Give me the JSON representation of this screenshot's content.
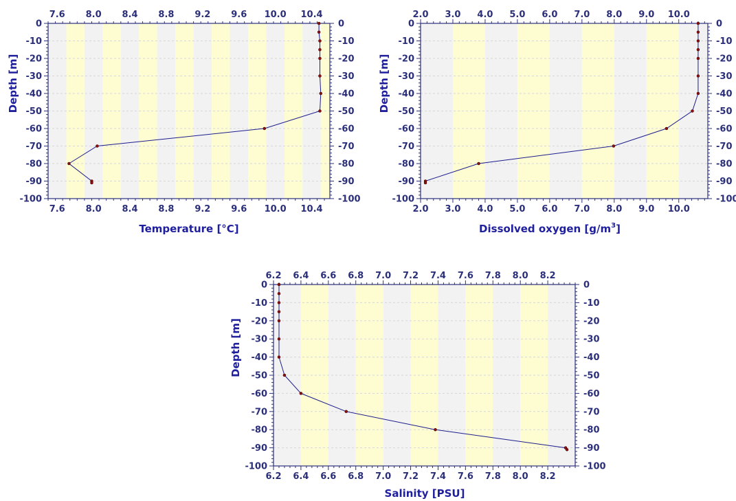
{
  "colors": {
    "band_gray": "#f2f2f2",
    "band_yellow": "#fefdd2",
    "axis": "#2b2f7a",
    "tick_text": "#2b2f7a",
    "title_text": "#1f1f9e",
    "line": "#1c1c8c",
    "marker": "#8b1010"
  },
  "chart_data": [
    {
      "type": "line",
      "xlabel": "Temperature [°C]",
      "ylabel": "Depth [m]",
      "xlim": [
        7.5,
        10.6
      ],
      "ylim": [
        -100,
        0
      ],
      "x_ticks": [
        "7.6",
        "8.0",
        "8.4",
        "8.8",
        "9.2",
        "9.6",
        "10.0",
        "10.4"
      ],
      "x_tick_values": [
        7.6,
        8.0,
        8.4,
        8.8,
        9.2,
        9.6,
        10.0,
        10.4
      ],
      "y_ticks_left": [
        "0",
        "-10",
        "-20",
        "-30",
        "-40",
        "-50",
        "-60",
        "-70",
        "-80",
        "-90",
        "-100"
      ],
      "y_ticks_right": [
        "0",
        "-10",
        "-20",
        "-30",
        "-40",
        "-50",
        "-60",
        "-70",
        "-80",
        "-90",
        "-100"
      ],
      "y_tick_values": [
        0,
        -10,
        -20,
        -30,
        -40,
        -50,
        -60,
        -70,
        -80,
        -90,
        -100
      ],
      "bands": [
        {
          "from": 7.5,
          "to": 7.7,
          "color": "gray"
        },
        {
          "from": 7.7,
          "to": 7.9,
          "color": "yellow"
        },
        {
          "from": 7.9,
          "to": 8.1,
          "color": "gray"
        },
        {
          "from": 8.1,
          "to": 8.3,
          "color": "yellow"
        },
        {
          "from": 8.3,
          "to": 8.5,
          "color": "gray"
        },
        {
          "from": 8.5,
          "to": 8.7,
          "color": "yellow"
        },
        {
          "from": 8.7,
          "to": 8.9,
          "color": "gray"
        },
        {
          "from": 8.9,
          "to": 9.1,
          "color": "yellow"
        },
        {
          "from": 9.1,
          "to": 9.3,
          "color": "gray"
        },
        {
          "from": 9.3,
          "to": 9.5,
          "color": "yellow"
        },
        {
          "from": 9.5,
          "to": 9.7,
          "color": "gray"
        },
        {
          "from": 9.7,
          "to": 9.9,
          "color": "yellow"
        },
        {
          "from": 9.9,
          "to": 10.1,
          "color": "gray"
        },
        {
          "from": 10.1,
          "to": 10.3,
          "color": "yellow"
        },
        {
          "from": 10.3,
          "to": 10.5,
          "color": "gray"
        },
        {
          "from": 10.5,
          "to": 10.6,
          "color": "yellow"
        }
      ],
      "points": [
        {
          "x": 10.48,
          "y": 0
        },
        {
          "x": 10.48,
          "y": -5
        },
        {
          "x": 10.49,
          "y": -10
        },
        {
          "x": 10.49,
          "y": -15
        },
        {
          "x": 10.49,
          "y": -20
        },
        {
          "x": 10.49,
          "y": -30
        },
        {
          "x": 10.5,
          "y": -40
        },
        {
          "x": 10.49,
          "y": -50
        },
        {
          "x": 9.88,
          "y": -60
        },
        {
          "x": 8.04,
          "y": -70
        },
        {
          "x": 7.73,
          "y": -80
        },
        {
          "x": 7.98,
          "y": -90
        },
        {
          "x": 7.98,
          "y": -91
        }
      ]
    },
    {
      "type": "line",
      "xlabel": "Dissolved oxygen [g/m",
      "xlabel_sup": "3",
      "xlabel_tail": "]",
      "ylabel": "Depth [m]",
      "xlim": [
        2.0,
        10.9
      ],
      "ylim": [
        -100,
        0
      ],
      "x_ticks": [
        "2.0",
        "3.0",
        "4.0",
        "5.0",
        "6.0",
        "7.0",
        "8.0",
        "9.0",
        "10.0"
      ],
      "x_tick_values": [
        2.0,
        3.0,
        4.0,
        5.0,
        6.0,
        7.0,
        8.0,
        9.0,
        10.0
      ],
      "y_ticks_left": [
        "0",
        "-10",
        "-20",
        "-30",
        "-40",
        "-50",
        "-60",
        "-70",
        "-80",
        "-90",
        "-100"
      ],
      "y_ticks_right": [
        "0",
        "-10",
        "-20",
        "-30",
        "-40",
        "-50",
        "-60",
        "-70",
        "-80",
        "-90",
        "-100"
      ],
      "y_tick_values": [
        0,
        -10,
        -20,
        -30,
        -40,
        -50,
        -60,
        -70,
        -80,
        -90,
        -100
      ],
      "bands": [
        {
          "from": 2.0,
          "to": 3.0,
          "color": "gray"
        },
        {
          "from": 3.0,
          "to": 4.0,
          "color": "yellow"
        },
        {
          "from": 4.0,
          "to": 5.0,
          "color": "gray"
        },
        {
          "from": 5.0,
          "to": 6.0,
          "color": "yellow"
        },
        {
          "from": 6.0,
          "to": 7.0,
          "color": "gray"
        },
        {
          "from": 7.0,
          "to": 8.0,
          "color": "yellow"
        },
        {
          "from": 8.0,
          "to": 9.0,
          "color": "gray"
        },
        {
          "from": 9.0,
          "to": 10.0,
          "color": "yellow"
        },
        {
          "from": 10.0,
          "to": 10.9,
          "color": "gray"
        }
      ],
      "points": [
        {
          "x": 10.6,
          "y": 0
        },
        {
          "x": 10.6,
          "y": -5
        },
        {
          "x": 10.6,
          "y": -10
        },
        {
          "x": 10.6,
          "y": -15
        },
        {
          "x": 10.6,
          "y": -20
        },
        {
          "x": 10.6,
          "y": -30
        },
        {
          "x": 10.6,
          "y": -40
        },
        {
          "x": 10.42,
          "y": -50
        },
        {
          "x": 9.62,
          "y": -60
        },
        {
          "x": 7.98,
          "y": -70
        },
        {
          "x": 3.8,
          "y": -80
        },
        {
          "x": 2.15,
          "y": -90
        },
        {
          "x": 2.15,
          "y": -91
        }
      ]
    },
    {
      "type": "line",
      "xlabel": "Salinity [PSU]",
      "ylabel": "Depth [m]",
      "xlim": [
        6.2,
        8.4
      ],
      "ylim": [
        -100,
        0
      ],
      "x_ticks": [
        "6.2",
        "6.4",
        "6.6",
        "6.8",
        "7.0",
        "7.2",
        "7.4",
        "7.6",
        "7.8",
        "8.0",
        "8.2"
      ],
      "x_tick_values": [
        6.2,
        6.4,
        6.6,
        6.8,
        7.0,
        7.2,
        7.4,
        7.6,
        7.8,
        8.0,
        8.2
      ],
      "y_ticks_left": [
        "0",
        "-10",
        "-20",
        "-30",
        "-40",
        "-50",
        "-60",
        "-70",
        "-80",
        "-90",
        "-100"
      ],
      "y_ticks_right": [
        "0",
        "-10",
        "-20",
        "-30",
        "-40",
        "-50",
        "-60",
        "-70",
        "-80",
        "-90",
        "-100"
      ],
      "y_tick_values": [
        0,
        -10,
        -20,
        -30,
        -40,
        -50,
        -60,
        -70,
        -80,
        -90,
        -100
      ],
      "bands": [
        {
          "from": 6.2,
          "to": 6.4,
          "color": "gray"
        },
        {
          "from": 6.4,
          "to": 6.6,
          "color": "yellow"
        },
        {
          "from": 6.6,
          "to": 6.8,
          "color": "gray"
        },
        {
          "from": 6.8,
          "to": 7.0,
          "color": "yellow"
        },
        {
          "from": 7.0,
          "to": 7.2,
          "color": "gray"
        },
        {
          "from": 7.2,
          "to": 7.4,
          "color": "yellow"
        },
        {
          "from": 7.4,
          "to": 7.6,
          "color": "gray"
        },
        {
          "from": 7.6,
          "to": 7.8,
          "color": "yellow"
        },
        {
          "from": 7.8,
          "to": 8.0,
          "color": "gray"
        },
        {
          "from": 8.0,
          "to": 8.2,
          "color": "yellow"
        },
        {
          "from": 8.2,
          "to": 8.4,
          "color": "gray"
        }
      ],
      "points": [
        {
          "x": 6.24,
          "y": 0
        },
        {
          "x": 6.24,
          "y": -5
        },
        {
          "x": 6.24,
          "y": -10
        },
        {
          "x": 6.24,
          "y": -15
        },
        {
          "x": 6.24,
          "y": -20
        },
        {
          "x": 6.24,
          "y": -30
        },
        {
          "x": 6.24,
          "y": -40
        },
        {
          "x": 6.28,
          "y": -50
        },
        {
          "x": 6.4,
          "y": -60
        },
        {
          "x": 6.73,
          "y": -70
        },
        {
          "x": 7.38,
          "y": -80
        },
        {
          "x": 8.33,
          "y": -90
        },
        {
          "x": 8.34,
          "y": -91
        }
      ]
    }
  ]
}
